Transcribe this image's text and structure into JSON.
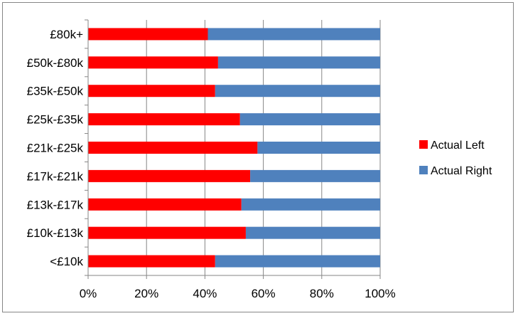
{
  "chart_data": {
    "type": "bar",
    "orientation": "horizontal",
    "stacked": "percent",
    "categories": [
      "£80k+",
      "£50k-£80k",
      "£35k-£50k",
      "£25k-£35k",
      "£21k-£25k",
      "£17k-£21k",
      "£13k-£17k",
      "£10k-£13k",
      "<£10k"
    ],
    "series": [
      {
        "name": "Actual Left",
        "color": "#ff0000",
        "values": [
          41,
          44.5,
          43.5,
          52,
          58,
          55.5,
          52.5,
          54,
          43.5
        ]
      },
      {
        "name": "Actual Right",
        "color": "#4f81bd",
        "values": [
          59,
          55.5,
          56.5,
          48,
          42,
          44.5,
          47.5,
          46,
          56.5
        ]
      }
    ],
    "x_ticks": [
      "0%",
      "20%",
      "40%",
      "60%",
      "80%",
      "100%"
    ],
    "xlim": [
      0,
      100
    ],
    "grid": "vertical",
    "legend_position": "right",
    "title": "",
    "xlabel": "",
    "ylabel": ""
  }
}
